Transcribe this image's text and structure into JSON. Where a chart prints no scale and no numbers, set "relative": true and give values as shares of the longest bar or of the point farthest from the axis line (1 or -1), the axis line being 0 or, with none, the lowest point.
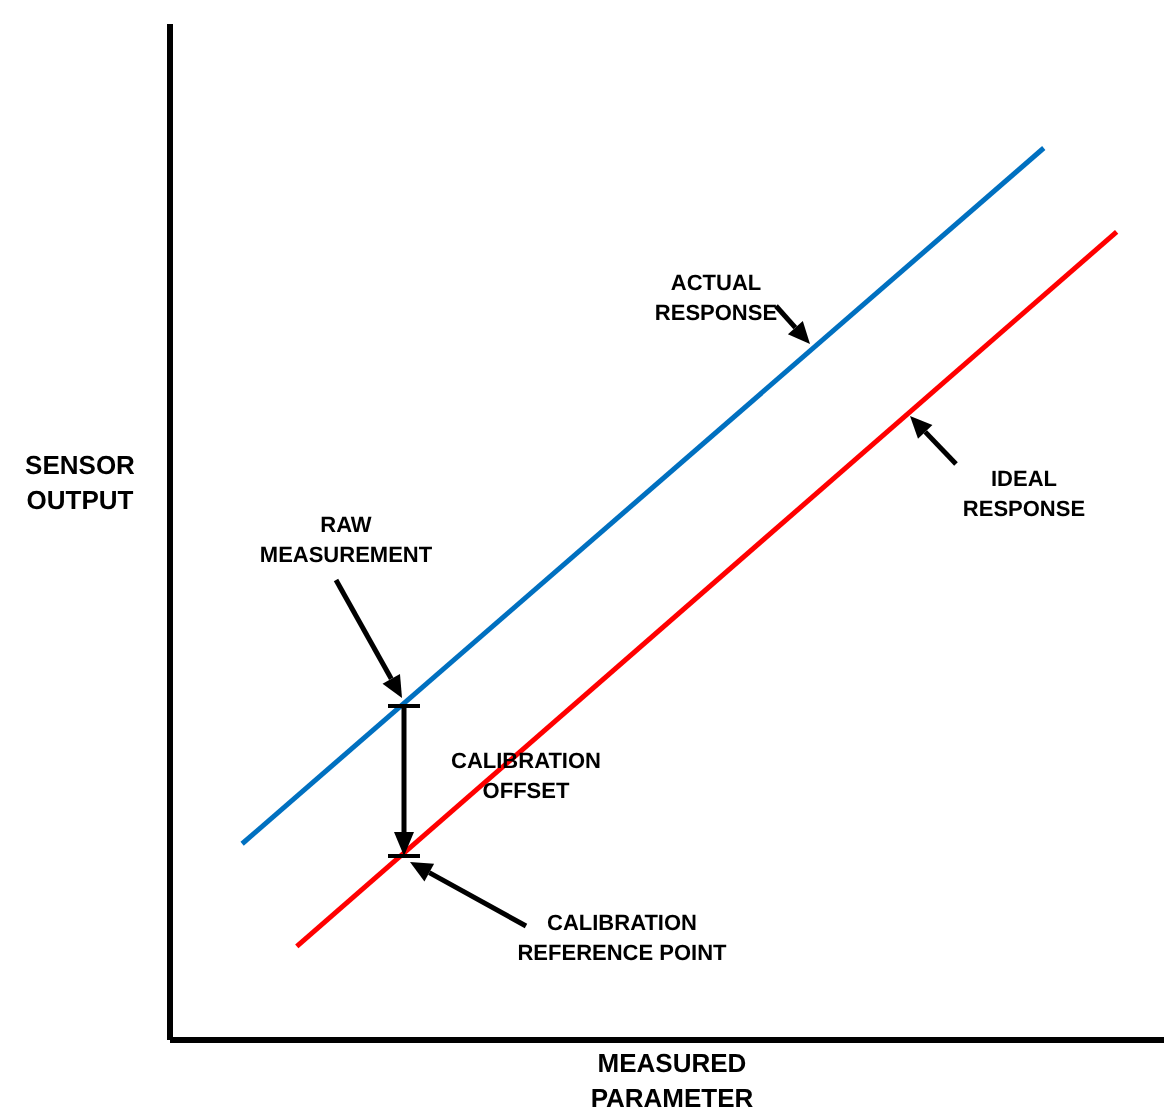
{
  "chart_data": {
    "type": "line",
    "relative": true,
    "xlabel": "MEASURED PARAMETER",
    "ylabel": "SENSOR OUTPUT",
    "marker": "none",
    "line_style": "solid",
    "categories": [
      null,
      null,
      null,
      null,
      null,
      null,
      null,
      null,
      null,
      null,
      null,
      null,
      null,
      null,
      null,
      null,
      null,
      null,
      null,
      null,
      null,
      null,
      null,
      null,
      null,
      null,
      null,
      null,
      null,
      null,
      null,
      null,
      null,
      null,
      null,
      null,
      null,
      null,
      null,
      null,
      null,
      null,
      null,
      null,
      null,
      null,
      null,
      null,
      null
    ],
    "series": [
      {
        "color": "#0070c0",
        "values": [
          0.22,
          null,
          null,
          null,
          null,
          null,
          null,
          null,
          null,
          null,
          null,
          null,
          null,
          null,
          null,
          null,
          null,
          null,
          null,
          null,
          null,
          null,
          null,
          null,
          null,
          null,
          null,
          null,
          null,
          null,
          null,
          null,
          null,
          null,
          null,
          null,
          null,
          null,
          null,
          null,
          null,
          null,
          null,
          null,
          1.0,
          null,
          null,
          null,
          null
        ]
      },
      {
        "color": "#ff0000",
        "values": [
          null,
          null,
          null,
          0.105,
          null,
          null,
          null,
          null,
          null,
          null,
          null,
          null,
          null,
          null,
          null,
          null,
          null,
          null,
          null,
          null,
          null,
          null,
          null,
          null,
          null,
          null,
          null,
          null,
          null,
          null,
          null,
          null,
          null,
          null,
          null,
          null,
          null,
          null,
          null,
          null,
          null,
          null,
          null,
          null,
          null,
          null,
          null,
          null,
          0.906
        ]
      }
    ],
    "annotations": [
      "ACTUAL RESPONSE",
      "IDEAL RESPONSE",
      "RAW MEASUREMENT",
      "CALIBRATION OFFSET",
      "CALIBRATION REFERENCE POINT"
    ]
  }
}
